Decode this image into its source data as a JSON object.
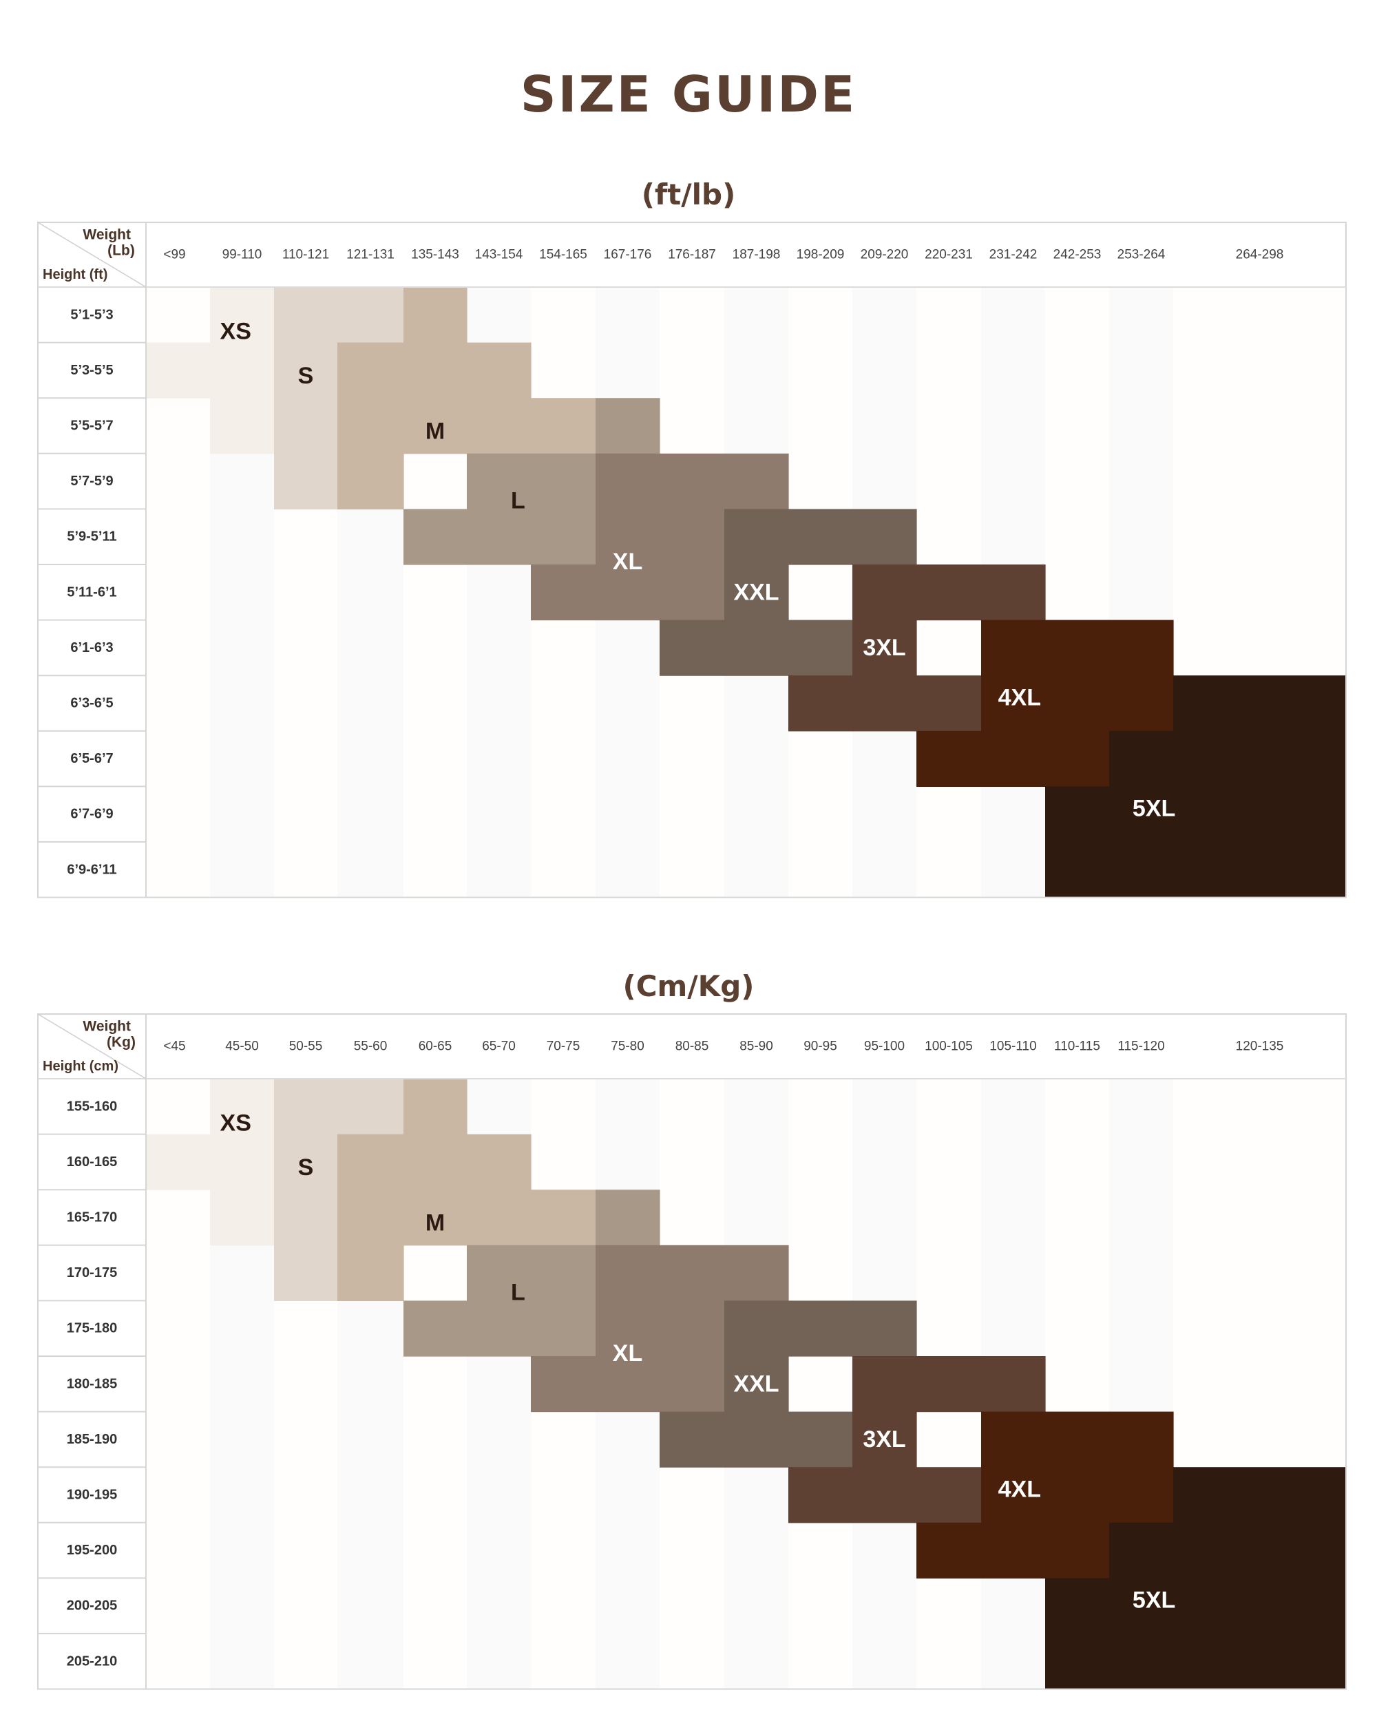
{
  "title": "SIZE GUIDE",
  "colors": {
    "title": "#5b3f30",
    "XS": "#f4efe9",
    "S": "#e0d6cc",
    "M": "#c9b6a3",
    "L": "#a89888",
    "XL": "#8f7b6d",
    "XXL": "#736357",
    "3XL": "#5e4132",
    "4XL": "#4a200b",
    "5XL": "#2f1a0f"
  },
  "chart_data": [
    {
      "type": "table",
      "title": "(ft/lb)",
      "corner_top": [
        "Weight",
        "(Lb)"
      ],
      "corner_bottom": "Height (ft)",
      "columns": [
        "<99",
        "99-110",
        "110-121",
        "121-131",
        "135-143",
        "143-154",
        "154-165",
        "167-176",
        "176-187",
        "187-198",
        "198-209",
        "209-220",
        "220-231",
        "231-242",
        "242-253",
        "253-264",
        "264-298"
      ],
      "rows": [
        "5’1-5’3",
        "5’3-5’5",
        "5’5-5’7",
        "5’7-5’9",
        "5’9-5’11",
        "5’11-6’1",
        "6’1-6’3",
        "6’3-6’5",
        "6’5-6’7",
        "6’7-6’9",
        "6’9-6’11"
      ],
      "sizes": [
        {
          "name": "XS",
          "cells": [
            [
              0,
              1
            ],
            [
              1,
              0
            ],
            [
              1,
              1
            ],
            [
              2,
              1
            ]
          ]
        },
        {
          "name": "S",
          "cells": [
            [
              0,
              2
            ],
            [
              0,
              3
            ],
            [
              1,
              2
            ],
            [
              2,
              2
            ],
            [
              3,
              2
            ]
          ]
        },
        {
          "name": "M",
          "cells": [
            [
              0,
              4
            ],
            [
              1,
              3
            ],
            [
              1,
              4
            ],
            [
              1,
              5
            ],
            [
              2,
              3
            ],
            [
              2,
              4
            ],
            [
              2,
              5
            ],
            [
              2,
              6
            ],
            [
              3,
              3
            ]
          ]
        },
        {
          "name": "L",
          "cells": [
            [
              2,
              7
            ],
            [
              3,
              5
            ],
            [
              3,
              6
            ],
            [
              4,
              4
            ],
            [
              4,
              5
            ],
            [
              4,
              6
            ]
          ]
        },
        {
          "name": "XL",
          "cells": [
            [
              3,
              7
            ],
            [
              3,
              8
            ],
            [
              3,
              9
            ],
            [
              4,
              7
            ],
            [
              4,
              8
            ],
            [
              5,
              6
            ],
            [
              5,
              7
            ],
            [
              5,
              8
            ]
          ]
        },
        {
          "name": "XXL",
          "cells": [
            [
              4,
              9
            ],
            [
              4,
              10
            ],
            [
              4,
              11
            ],
            [
              5,
              9
            ],
            [
              6,
              8
            ],
            [
              6,
              9
            ],
            [
              6,
              10
            ]
          ]
        },
        {
          "name": "3XL",
          "cells": [
            [
              5,
              11
            ],
            [
              5,
              12
            ],
            [
              5,
              13
            ],
            [
              6,
              11
            ],
            [
              7,
              10
            ],
            [
              7,
              11
            ],
            [
              7,
              12
            ]
          ]
        },
        {
          "name": "4XL",
          "cells": [
            [
              6,
              13
            ],
            [
              6,
              14
            ],
            [
              6,
              15
            ],
            [
              7,
              13
            ],
            [
              7,
              14
            ],
            [
              7,
              15
            ],
            [
              8,
              12
            ],
            [
              8,
              13
            ],
            [
              8,
              14
            ]
          ]
        },
        {
          "name": "5XL",
          "cells": [
            [
              7,
              16
            ],
            [
              8,
              15
            ],
            [
              8,
              16
            ],
            [
              9,
              14
            ],
            [
              9,
              15
            ],
            [
              9,
              16
            ],
            [
              10,
              14
            ],
            [
              10,
              15
            ],
            [
              10,
              16
            ]
          ]
        }
      ]
    },
    {
      "type": "table",
      "title": "(Cm/Kg)",
      "corner_top": [
        "Weight",
        "(Kg)"
      ],
      "corner_bottom": "Height (cm)",
      "columns": [
        "<45",
        "45-50",
        "50-55",
        "55-60",
        "60-65",
        "65-70",
        "70-75",
        "75-80",
        "80-85",
        "85-90",
        "90-95",
        "95-100",
        "100-105",
        "105-110",
        "110-115",
        "115-120",
        "120-135"
      ],
      "rows": [
        "155-160",
        "160-165",
        "165-170",
        "170-175",
        "175-180",
        "180-185",
        "185-190",
        "190-195",
        "195-200",
        "200-205",
        "205-210"
      ],
      "sizes": [
        {
          "name": "XS",
          "cells": [
            [
              0,
              1
            ],
            [
              1,
              0
            ],
            [
              1,
              1
            ],
            [
              2,
              1
            ]
          ]
        },
        {
          "name": "S",
          "cells": [
            [
              0,
              2
            ],
            [
              0,
              3
            ],
            [
              1,
              2
            ],
            [
              2,
              2
            ],
            [
              3,
              2
            ]
          ]
        },
        {
          "name": "M",
          "cells": [
            [
              0,
              4
            ],
            [
              1,
              3
            ],
            [
              1,
              4
            ],
            [
              1,
              5
            ],
            [
              2,
              3
            ],
            [
              2,
              4
            ],
            [
              2,
              5
            ],
            [
              2,
              6
            ],
            [
              3,
              3
            ]
          ]
        },
        {
          "name": "L",
          "cells": [
            [
              2,
              7
            ],
            [
              3,
              5
            ],
            [
              3,
              6
            ],
            [
              4,
              4
            ],
            [
              4,
              5
            ],
            [
              4,
              6
            ]
          ]
        },
        {
          "name": "XL",
          "cells": [
            [
              3,
              7
            ],
            [
              3,
              8
            ],
            [
              3,
              9
            ],
            [
              4,
              7
            ],
            [
              4,
              8
            ],
            [
              5,
              6
            ],
            [
              5,
              7
            ],
            [
              5,
              8
            ]
          ]
        },
        {
          "name": "XXL",
          "cells": [
            [
              4,
              9
            ],
            [
              4,
              10
            ],
            [
              4,
              11
            ],
            [
              5,
              9
            ],
            [
              6,
              8
            ],
            [
              6,
              9
            ],
            [
              6,
              10
            ]
          ]
        },
        {
          "name": "3XL",
          "cells": [
            [
              5,
              11
            ],
            [
              5,
              12
            ],
            [
              5,
              13
            ],
            [
              6,
              11
            ],
            [
              7,
              10
            ],
            [
              7,
              11
            ],
            [
              7,
              12
            ]
          ]
        },
        {
          "name": "4XL",
          "cells": [
            [
              6,
              13
            ],
            [
              6,
              14
            ],
            [
              6,
              15
            ],
            [
              7,
              13
            ],
            [
              7,
              14
            ],
            [
              7,
              15
            ],
            [
              8,
              12
            ],
            [
              8,
              13
            ],
            [
              8,
              14
            ]
          ]
        },
        {
          "name": "5XL",
          "cells": [
            [
              7,
              16
            ],
            [
              8,
              15
            ],
            [
              8,
              16
            ],
            [
              9,
              14
            ],
            [
              9,
              15
            ],
            [
              9,
              16
            ],
            [
              10,
              14
            ],
            [
              10,
              15
            ],
            [
              10,
              16
            ]
          ]
        }
      ]
    }
  ]
}
